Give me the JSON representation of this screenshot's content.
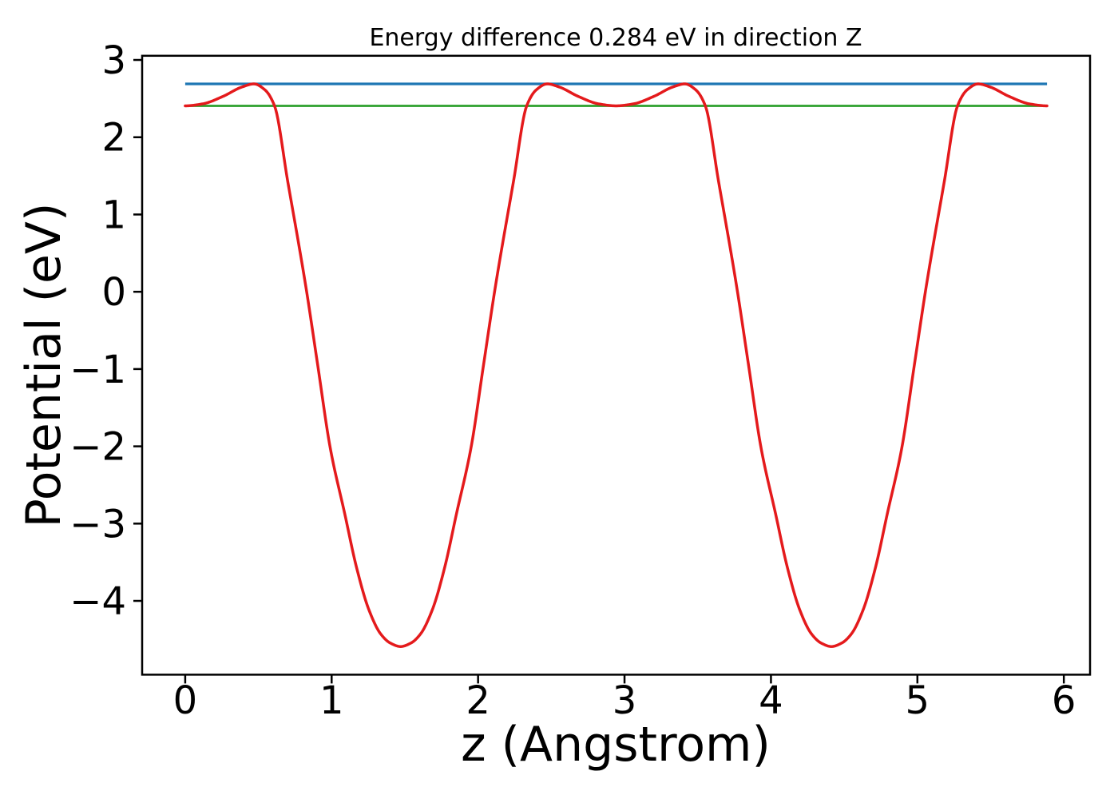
{
  "chart_data": {
    "type": "line",
    "title": "Energy difference 0.284 eV in direction Z",
    "xlabel": "z (Angstrom)",
    "ylabel": "Potential (eV)",
    "xlim": [
      -0.294,
      6.179
    ],
    "ylim": [
      -4.955,
      3.054
    ],
    "xticks": [
      0,
      1,
      2,
      3,
      4,
      5,
      6
    ],
    "yticks": [
      3,
      2,
      1,
      0,
      -1,
      -2,
      -3,
      -4
    ],
    "grid": false,
    "legend": "none",
    "energy_difference_eV": 0.284,
    "direction": "Z",
    "axis_color": "#000000",
    "background_color": "#ffffff",
    "series": [
      {
        "name": "potential-curve",
        "type": "line",
        "color": "#e41a1c",
        "line_width": 3.5,
        "points": [
          [
            0.0,
            2.406
          ],
          [
            0.12,
            2.432
          ],
          [
            0.26,
            2.53
          ],
          [
            0.385,
            2.648
          ],
          [
            0.47,
            2.69
          ],
          [
            0.545,
            2.612
          ],
          [
            0.61,
            2.406
          ],
          [
            0.7,
            1.43
          ],
          [
            0.825,
            0.053
          ],
          [
            0.905,
            -0.95
          ],
          [
            0.99,
            -2.016
          ],
          [
            1.09,
            -2.877
          ],
          [
            1.17,
            -3.567
          ],
          [
            1.255,
            -4.118
          ],
          [
            1.335,
            -4.428
          ],
          [
            1.4,
            -4.545
          ],
          [
            1.471,
            -4.591
          ],
          [
            1.542,
            -4.545
          ],
          [
            1.607,
            -4.428
          ],
          [
            1.687,
            -4.118
          ],
          [
            1.772,
            -3.567
          ],
          [
            1.852,
            -2.877
          ],
          [
            1.952,
            -2.016
          ],
          [
            2.037,
            -0.95
          ],
          [
            2.117,
            0.053
          ],
          [
            2.242,
            1.43
          ],
          [
            2.332,
            2.406
          ],
          [
            2.397,
            2.612
          ],
          [
            2.472,
            2.69
          ],
          [
            2.557,
            2.648
          ],
          [
            2.682,
            2.53
          ],
          [
            2.822,
            2.432
          ],
          [
            2.942,
            2.406
          ],
          [
            3.062,
            2.432
          ],
          [
            3.202,
            2.53
          ],
          [
            3.327,
            2.648
          ],
          [
            3.412,
            2.69
          ],
          [
            3.487,
            2.612
          ],
          [
            3.552,
            2.406
          ],
          [
            3.642,
            1.43
          ],
          [
            3.767,
            0.053
          ],
          [
            3.847,
            -0.95
          ],
          [
            3.932,
            -2.016
          ],
          [
            4.032,
            -2.877
          ],
          [
            4.112,
            -3.567
          ],
          [
            4.197,
            -4.118
          ],
          [
            4.277,
            -4.428
          ],
          [
            4.342,
            -4.545
          ],
          [
            4.413,
            -4.591
          ],
          [
            4.484,
            -4.545
          ],
          [
            4.549,
            -4.428
          ],
          [
            4.629,
            -4.118
          ],
          [
            4.714,
            -3.567
          ],
          [
            4.794,
            -2.877
          ],
          [
            4.894,
            -2.016
          ],
          [
            4.979,
            -0.95
          ],
          [
            5.059,
            0.053
          ],
          [
            5.184,
            1.43
          ],
          [
            5.274,
            2.406
          ],
          [
            5.339,
            2.612
          ],
          [
            5.414,
            2.69
          ],
          [
            5.499,
            2.648
          ],
          [
            5.624,
            2.53
          ],
          [
            5.764,
            2.432
          ],
          [
            5.885,
            2.406
          ]
        ]
      },
      {
        "name": "max-potential-line",
        "type": "hline",
        "color": "#1f77b4",
        "line_width": 3.2,
        "y": 2.69,
        "x_start": 0.0,
        "x_end": 5.885
      },
      {
        "name": "valley-potential-line",
        "type": "hline",
        "color": "#2ca02c",
        "line_width": 2.8,
        "y": 2.406,
        "x_start": 0.0,
        "x_end": 5.885
      }
    ]
  }
}
